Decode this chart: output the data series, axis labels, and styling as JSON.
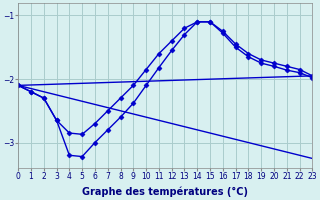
{
  "xlabel": "Graphe des températures (°C)",
  "xlim": [
    0,
    23
  ],
  "ylim": [
    -3.4,
    -0.8
  ],
  "yticks": [
    -3,
    -2,
    -1
  ],
  "xtick_labels": [
    "0",
    "1",
    "2",
    "3",
    "4",
    "5",
    "6",
    "7",
    "8",
    "9",
    "10",
    "11",
    "12",
    "13",
    "14",
    "15",
    "16",
    "17",
    "18",
    "19",
    "20",
    "21",
    "22",
    "23"
  ],
  "background_color": "#d8f0f0",
  "grid_color": "#aacccc",
  "line_color": "#0000cc",
  "line_width": 1.0,
  "marker": "D",
  "marker_size": 2.5,
  "series1_x": [
    0,
    1,
    2,
    3,
    4,
    5,
    6,
    7,
    8,
    9,
    10,
    11,
    12,
    13,
    14,
    15,
    16,
    17,
    18,
    19,
    20,
    21,
    22,
    23
  ],
  "series1_y": [
    -2.1,
    -2.2,
    -2.3,
    -2.65,
    -2.85,
    -2.87,
    -2.7,
    -2.5,
    -2.3,
    -2.1,
    -1.85,
    -1.6,
    -1.4,
    -1.2,
    -1.1,
    -1.1,
    -1.25,
    -1.45,
    -1.6,
    -1.7,
    -1.75,
    -1.8,
    -1.85,
    -1.95
  ],
  "series2_x": [
    0,
    1,
    2,
    3,
    4,
    5,
    6,
    7,
    8,
    9,
    10,
    11,
    12,
    13,
    14,
    15,
    16,
    17,
    18,
    19,
    20,
    21,
    22,
    23
  ],
  "series2_y": [
    -2.1,
    -2.2,
    -2.3,
    -2.65,
    -3.2,
    -3.22,
    -3.0,
    -2.8,
    -2.6,
    -2.38,
    -2.1,
    -1.82,
    -1.55,
    -1.3,
    -1.1,
    -1.1,
    -1.28,
    -1.5,
    -1.65,
    -1.75,
    -1.8,
    -1.86,
    -1.9,
    -1.98
  ],
  "line3_x0": 0,
  "line3_y0": -2.1,
  "line3_x1": 23,
  "line3_y1": -1.95,
  "line4_x0": 0,
  "line4_y0": -2.1,
  "line4_x1": 23,
  "line4_y1": -3.25,
  "axis_fontsize": 7,
  "tick_fontsize": 5.5
}
